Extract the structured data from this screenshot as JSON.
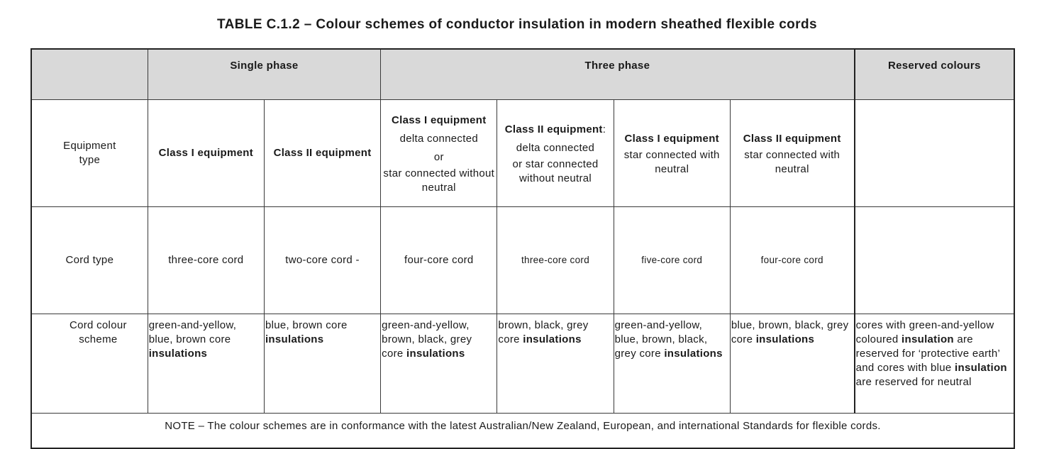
{
  "title": "TABLE C.1.2 – Colour schemes of conductor insulation in modern sheathed flexible cords",
  "groups": {
    "single": "Single phase",
    "three": "Three phase",
    "reserved": "Reserved colours"
  },
  "equipment_row": {
    "label": "Equipment type",
    "cols": [
      {
        "bold": "Class I equipment",
        "text": ""
      },
      {
        "bold": "Class II equipment",
        "text": ""
      },
      {
        "bold": "Class I equipment",
        "text": "delta connected\nor\nstar connected without neutral"
      },
      {
        "bold": "Class II equipment",
        "suffix": ":",
        "text": "delta connected\nor star connected without neutral"
      },
      {
        "bold": "Class I equipment",
        "text": "star connected with neutral"
      },
      {
        "bold": "Class II equipment",
        "text": "star connected with neutral"
      }
    ],
    "reserved": ""
  },
  "cord_row": {
    "label": "Cord type",
    "cols": [
      "three-core cord",
      "two-core cord -",
      "four-core cord",
      "three-core cord",
      "five-core cord",
      "four-core cord"
    ],
    "reserved": ""
  },
  "scheme_row": {
    "label": "Cord colour scheme",
    "cols": [
      {
        "text": "green-and-yellow, blue, brown core",
        "bold": "insulations"
      },
      {
        "text": "blue, brown core",
        "bold": "insulations"
      },
      {
        "text": "green-and-yellow, brown, black, grey core",
        "bold": "insulations"
      },
      {
        "text": "brown, black, grey core",
        "bold": "insulations"
      },
      {
        "text": "green-and-yellow, blue, brown, black, grey core",
        "bold": "insulations"
      },
      {
        "text": "blue, brown, black, grey core",
        "bold": "insulations"
      }
    ],
    "reserved": {
      "p1": "cores with green-and-yellow coloured",
      "b1": "insulation",
      "p2": "are reserved for ‘protective earth’ and cores with blue",
      "b2": "insulation",
      "p3": "are reserved for neutral"
    }
  },
  "note": "NOTE – The colour schemes are in conformance with the latest Australian/New Zealand, European, and international Standards for flexible cords."
}
